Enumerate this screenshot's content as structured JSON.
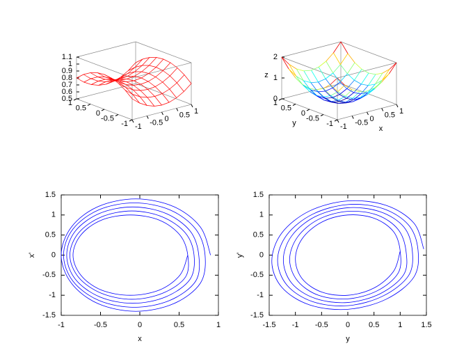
{
  "chart_data": [
    {
      "type": "surface",
      "color": "#ff0000",
      "xlim": [
        -1,
        1
      ],
      "ylim": [
        -1,
        1
      ],
      "zlim": [
        0.5,
        1.1
      ],
      "xticks": [
        -1,
        -0.5,
        0,
        0.5,
        1
      ],
      "yticks": [
        -1,
        -0.5,
        0,
        0.5,
        1
      ],
      "zticks": [
        0.5,
        0.6,
        0.7,
        0.8,
        0.9,
        1,
        1.1
      ],
      "x": [
        -1,
        -0.75,
        -0.5,
        -0.25,
        0,
        0.25,
        0.5,
        0.75,
        1
      ],
      "y": [
        -1,
        -0.75,
        -0.5,
        -0.25,
        0,
        0.25,
        0.5,
        0.75,
        1
      ],
      "z": [
        [
          0.8,
          0.7125,
          0.65,
          0.6125,
          0.6,
          0.6125,
          0.65,
          0.7125,
          0.8
        ],
        [
          0.8875,
          0.8,
          0.7375,
          0.7,
          0.6875,
          0.7,
          0.7375,
          0.8,
          0.8875
        ],
        [
          0.95,
          0.8625,
          0.8,
          0.7625,
          0.75,
          0.7625,
          0.8,
          0.8625,
          0.95
        ],
        [
          0.9875,
          0.9,
          0.8375,
          0.8,
          0.7875,
          0.8,
          0.8375,
          0.9,
          0.9875
        ],
        [
          1,
          0.9125,
          0.85,
          0.8125,
          0.8,
          0.8125,
          0.85,
          0.9125,
          1
        ],
        [
          0.9875,
          0.9,
          0.8375,
          0.8,
          0.7875,
          0.8,
          0.8375,
          0.9,
          0.9875
        ],
        [
          0.95,
          0.8625,
          0.8,
          0.7625,
          0.75,
          0.7625,
          0.8,
          0.8625,
          0.95
        ],
        [
          0.8875,
          0.8,
          0.7375,
          0.7,
          0.6875,
          0.7,
          0.7375,
          0.8,
          0.8875
        ],
        [
          0.8,
          0.7125,
          0.65,
          0.6125,
          0.6,
          0.6125,
          0.65,
          0.7125,
          0.8
        ]
      ]
    },
    {
      "type": "surface",
      "colormap": "jet",
      "xlabel": "x",
      "ylabel": "y",
      "zlabel": "z",
      "xlim": [
        -1,
        1
      ],
      "ylim": [
        -1,
        1
      ],
      "zlim": [
        0,
        2
      ],
      "xticks": [
        -1,
        -0.5,
        0,
        0.5,
        1
      ],
      "yticks": [
        -1,
        -0.5,
        0,
        0.5,
        1
      ],
      "zticks": [
        0,
        1,
        2
      ],
      "x": [
        -1,
        -0.75,
        -0.5,
        -0.25,
        0,
        0.25,
        0.5,
        0.75,
        1
      ],
      "y": [
        -1,
        -0.75,
        -0.5,
        -0.25,
        0,
        0.25,
        0.5,
        0.75,
        1
      ],
      "z": [
        [
          2,
          1.5625,
          1.25,
          1.0625,
          1,
          1.0625,
          1.25,
          1.5625,
          2
        ],
        [
          1.5625,
          1.125,
          0.8125,
          0.625,
          0.5625,
          0.625,
          0.8125,
          1.125,
          1.5625
        ],
        [
          1.25,
          0.8125,
          0.5,
          0.3125,
          0.25,
          0.3125,
          0.5,
          0.8125,
          1.25
        ],
        [
          1.0625,
          0.625,
          0.3125,
          0.125,
          0.0625,
          0.125,
          0.3125,
          0.625,
          1.0625
        ],
        [
          1,
          0.5625,
          0.25,
          0.0625,
          0,
          0.0625,
          0.25,
          0.5625,
          1
        ],
        [
          1.0625,
          0.625,
          0.3125,
          0.125,
          0.0625,
          0.125,
          0.3125,
          0.625,
          1.0625
        ],
        [
          1.25,
          0.8125,
          0.5,
          0.3125,
          0.25,
          0.3125,
          0.5,
          0.8125,
          1.25
        ],
        [
          1.5625,
          1.125,
          0.8125,
          0.625,
          0.5625,
          0.625,
          0.8125,
          1.125,
          1.5625
        ],
        [
          2,
          1.5625,
          1.25,
          1.0625,
          1,
          1.0625,
          1.25,
          1.5625,
          2
        ]
      ]
    },
    {
      "type": "line",
      "xlabel": "x",
      "ylabel": "x'",
      "xlim": [
        -1,
        1
      ],
      "ylim": [
        -1.5,
        1.5
      ],
      "xticks": [
        -1,
        -0.5,
        0,
        0.5,
        1
      ],
      "yticks": [
        -1.5,
        -1,
        -0.5,
        0,
        0.5,
        1,
        1.5
      ],
      "series": [
        {
          "color": "#0000ff",
          "x": [
            0.9,
            0.77,
            0.43,
            -0.05,
            -0.53,
            -0.87,
            -1.0,
            -0.87,
            -0.53,
            -0.05,
            0.43,
            0.77,
            0.83,
            0.71,
            0.38,
            -0.07,
            -0.52,
            -0.85,
            -0.97,
            -0.85,
            -0.52,
            -0.07,
            0.38,
            0.71,
            0.75,
            0.64,
            0.33,
            -0.09,
            -0.51,
            -0.82,
            -0.93,
            -0.82,
            -0.51,
            -0.09,
            0.33,
            0.64,
            0.69,
            0.58,
            0.29,
            -0.1,
            -0.49,
            -0.78,
            -0.89,
            -0.78,
            -0.49,
            -0.1,
            0.29,
            0.58,
            0.61,
            0.51,
            0.25,
            -0.12,
            -0.49,
            -0.75,
            -0.85,
            -0.75,
            -0.49,
            -0.12,
            0.25,
            0.51,
            0.61
          ],
          "values": [
            0,
            0.7,
            1.21,
            1.4,
            1.21,
            0.7,
            0,
            -0.7,
            -1.21,
            -1.4,
            -1.21,
            -0.7,
            0,
            0.65,
            1.13,
            1.3,
            1.13,
            0.65,
            0,
            -0.65,
            -1.13,
            -1.3,
            -1.13,
            -0.65,
            0,
            0.6,
            1.04,
            1.2,
            1.04,
            0.6,
            0,
            -0.6,
            -1.04,
            -1.2,
            -1.04,
            -0.6,
            0,
            0.55,
            0.95,
            1.1,
            0.95,
            0.55,
            0,
            -0.55,
            -0.95,
            -1.1,
            -0.95,
            -0.55,
            0,
            0.5,
            0.87,
            1,
            0.87,
            0.5,
            0,
            -0.5,
            -0.87,
            -1,
            -0.87,
            -0.5,
            0
          ]
        }
      ]
    },
    {
      "type": "line",
      "xlabel": "y",
      "ylabel": "y'",
      "xlim": [
        -1.5,
        1.5
      ],
      "ylim": [
        -1.5,
        1.5
      ],
      "xticks": [
        -1.5,
        -1,
        -0.5,
        0,
        0.5,
        1,
        1.5
      ],
      "yticks": [
        -1.5,
        -1,
        -0.5,
        0,
        0.5,
        1,
        1.5
      ],
      "series": [
        {
          "color": "#0000ff",
          "x": [
            1.45,
            1.26,
            0.73,
            0,
            -0.73,
            -1.26,
            -1.45,
            -1.26,
            -0.73,
            0,
            0.73,
            1.26,
            1.34,
            1.16,
            0.67,
            0,
            -0.67,
            -1.16,
            -1.34,
            -1.16,
            -0.67,
            0,
            0.67,
            1.16,
            1.23,
            1.07,
            0.62,
            0,
            -0.62,
            -1.07,
            -1.23,
            -1.07,
            -0.62,
            0,
            0.62,
            1.07,
            1.11,
            0.96,
            0.56,
            0,
            -0.56,
            -0.96,
            -1.11,
            -0.96,
            -0.56,
            0,
            0.56,
            0.96,
            1,
            0.87,
            0.5,
            0,
            -0.5,
            -0.87,
            -1,
            -0.87,
            -0.5,
            0,
            0.5,
            0.87,
            1
          ],
          "values": [
            0.15,
            0.8,
            1.24,
            1.35,
            1.1,
            0.55,
            -0.15,
            -0.8,
            -1.24,
            -1.35,
            -1.1,
            -0.55,
            0.13,
            0.75,
            1.16,
            1.26,
            1.02,
            0.51,
            -0.13,
            -0.75,
            -1.16,
            -1.26,
            -1.02,
            -0.51,
            0.12,
            0.7,
            1.08,
            1.18,
            0.96,
            0.48,
            -0.12,
            -0.7,
            -1.08,
            -1.18,
            -0.96,
            -0.48,
            0.11,
            0.64,
            1.0,
            1.09,
            0.89,
            0.45,
            -0.11,
            -0.64,
            -1.0,
            -1.09,
            -0.89,
            -0.45,
            0.1,
            0.59,
            0.92,
            1,
            0.82,
            0.41,
            -0.1,
            -0.59,
            -0.92,
            -1,
            -0.82,
            -0.41,
            0.1
          ]
        }
      ]
    }
  ]
}
